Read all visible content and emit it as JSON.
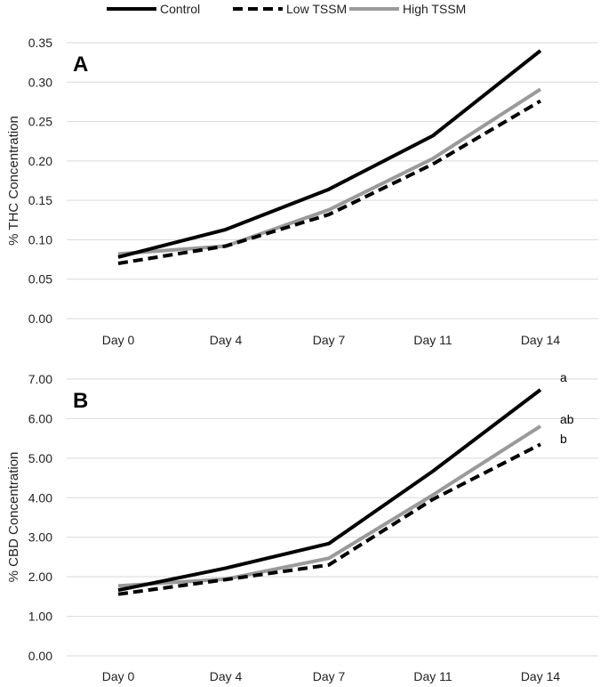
{
  "legend": [
    {
      "name": "Control",
      "color": "#000000",
      "dash": "solid"
    },
    {
      "name": "Low TSSM",
      "color": "#000000",
      "dash": "dashed"
    },
    {
      "name": "High TSSM",
      "color": "#9a9a9a",
      "dash": "solid"
    }
  ],
  "chart_data": [
    {
      "type": "line",
      "panel_label": "A",
      "ylabel": "% THC Concentration",
      "xlabel": "",
      "categories": [
        "Day 0",
        "Day 4",
        "Day 7",
        "Day 11",
        "Day 14"
      ],
      "ylim": [
        0,
        0.35
      ],
      "yticks": [
        "0.00",
        "0.05",
        "0.10",
        "0.15",
        "0.20",
        "0.25",
        "0.30",
        "0.35"
      ],
      "grid": true,
      "series": [
        {
          "name": "Control",
          "values": [
            0.078,
            0.113,
            0.164,
            0.232,
            0.34
          ]
        },
        {
          "name": "Low TSSM",
          "values": [
            0.07,
            0.092,
            0.132,
            0.196,
            0.276
          ]
        },
        {
          "name": "High TSSM",
          "values": [
            0.082,
            0.092,
            0.138,
            0.203,
            0.291
          ]
        }
      ],
      "annotations": []
    },
    {
      "type": "line",
      "panel_label": "B",
      "ylabel": "% CBD Concentration",
      "xlabel": "",
      "categories": [
        "Day 0",
        "Day 4",
        "Day 7",
        "Day 11",
        "Day 14"
      ],
      "ylim": [
        0,
        7
      ],
      "yticks": [
        "0.00",
        "1.00",
        "2.00",
        "3.00",
        "4.00",
        "5.00",
        "6.00",
        "7.00"
      ],
      "grid": true,
      "series": [
        {
          "name": "Control",
          "values": [
            1.66,
            2.22,
            2.84,
            4.67,
            6.73
          ]
        },
        {
          "name": "Low TSSM",
          "values": [
            1.56,
            1.93,
            2.3,
            3.96,
            5.35
          ]
        },
        {
          "name": "High TSSM",
          "values": [
            1.77,
            1.94,
            2.47,
            4.07,
            5.81
          ]
        }
      ],
      "annotations": [
        "a",
        "ab",
        "b"
      ]
    }
  ]
}
